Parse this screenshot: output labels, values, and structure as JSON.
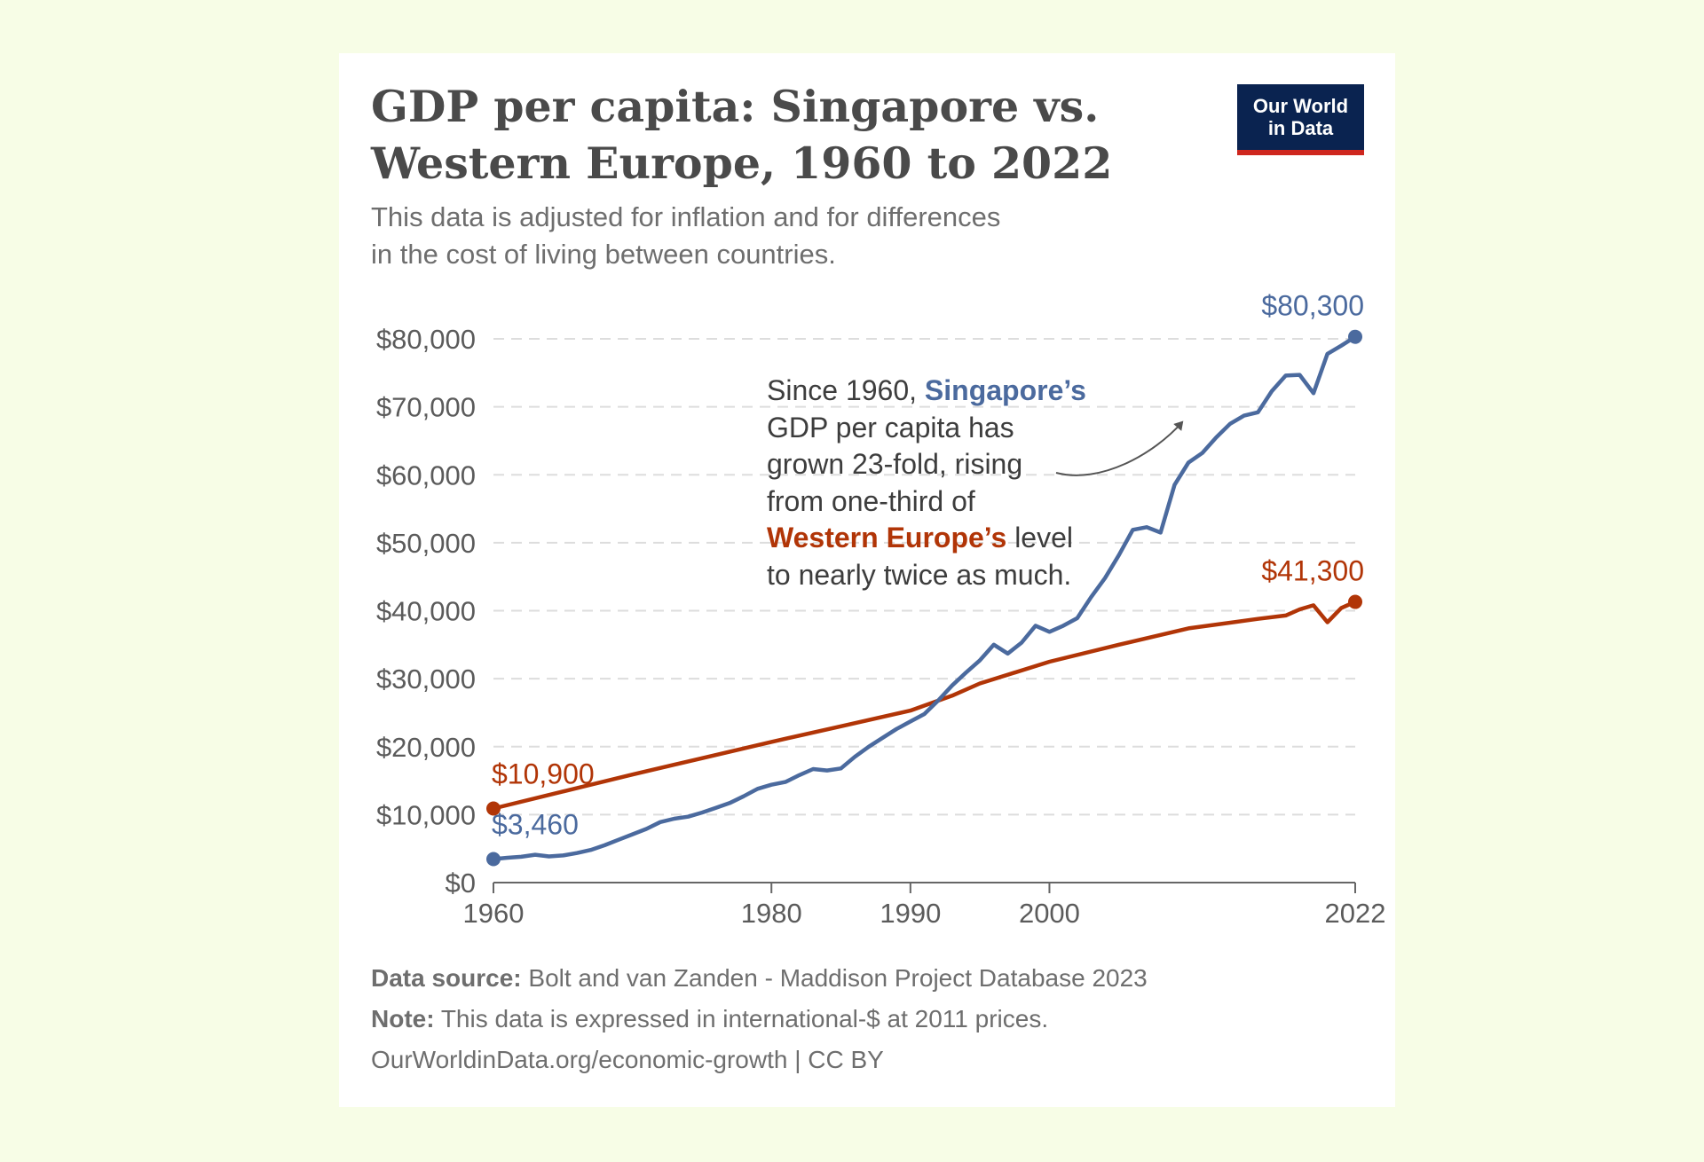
{
  "header": {
    "title_line1": "GDP per capita: Singapore vs.",
    "title_line2": "Western Europe, 1960 to 2022",
    "subtitle_line1": "This data is adjusted for inflation and for differences",
    "subtitle_line2": "in the cost of living between countries.",
    "logo_line1": "Our World",
    "logo_line2": "in Data"
  },
  "annotation": {
    "line1_pre": "Since 1960, ",
    "line1_hl": "Singapore’s",
    "line2": "GDP per capita has",
    "line3": "grown 23-fold, rising",
    "line4": "from one-third of",
    "line5_hl": "Western Europe’s",
    "line5_post": " level",
    "line6": "to nearly twice as much."
  },
  "footer": {
    "source_label": "Data source:",
    "source_text": " Bolt and van Zanden - Maddison Project Database 2023",
    "note_label": "Note:",
    "note_text": " This data is expressed in international-$ at 2011 prices.",
    "url": "OurWorldinData.org/economic-growth | CC BY"
  },
  "colors": {
    "singapore": "#4b6a9e",
    "western_europe": "#b13507",
    "grid": "#dddddd",
    "axis": "#666666",
    "tick_text": "#5b5b5b",
    "background": "#f7fde6"
  },
  "chart_data": {
    "type": "line",
    "ylim": [
      0,
      80000
    ],
    "xlim": [
      1960,
      2022
    ],
    "y_ticks": [
      0,
      10000,
      20000,
      30000,
      40000,
      50000,
      60000,
      70000,
      80000
    ],
    "y_tick_labels": [
      "$0",
      "$10,000",
      "$20,000",
      "$30,000",
      "$40,000",
      "$50,000",
      "$60,000",
      "$70,000",
      "$80,000"
    ],
    "x_ticks": [
      1960,
      1980,
      1990,
      2000,
      2022
    ],
    "x_tick_labels": [
      "1960",
      "1980",
      "1990",
      "2000",
      "2022"
    ],
    "grid": "horizontal dashed",
    "series": [
      {
        "name": "Singapore",
        "color": "#4b6a9e",
        "start_label": "$3,460",
        "end_label": "$80,300",
        "points": [
          [
            1960,
            3460
          ],
          [
            1961,
            3650
          ],
          [
            1962,
            3800
          ],
          [
            1963,
            4100
          ],
          [
            1964,
            3850
          ],
          [
            1965,
            4000
          ],
          [
            1966,
            4350
          ],
          [
            1967,
            4800
          ],
          [
            1968,
            5500
          ],
          [
            1969,
            6300
          ],
          [
            1970,
            7100
          ],
          [
            1971,
            7900
          ],
          [
            1972,
            8900
          ],
          [
            1973,
            9400
          ],
          [
            1974,
            9700
          ],
          [
            1975,
            10300
          ],
          [
            1976,
            11000
          ],
          [
            1977,
            11700
          ],
          [
            1978,
            12700
          ],
          [
            1979,
            13800
          ],
          [
            1980,
            14400
          ],
          [
            1981,
            14800
          ],
          [
            1982,
            15800
          ],
          [
            1983,
            16700
          ],
          [
            1984,
            16500
          ],
          [
            1985,
            16800
          ],
          [
            1986,
            18500
          ],
          [
            1987,
            20000
          ],
          [
            1988,
            21300
          ],
          [
            1989,
            22600
          ],
          [
            1990,
            23700
          ],
          [
            1991,
            24800
          ],
          [
            1992,
            26800
          ],
          [
            1993,
            29000
          ],
          [
            1994,
            30900
          ],
          [
            1995,
            32700
          ],
          [
            1996,
            35000
          ],
          [
            1997,
            33700
          ],
          [
            1998,
            35300
          ],
          [
            1999,
            37800
          ],
          [
            2000,
            36900
          ],
          [
            2001,
            37800
          ],
          [
            2002,
            38900
          ],
          [
            2003,
            42000
          ],
          [
            2004,
            44800
          ],
          [
            2005,
            48200
          ],
          [
            2006,
            51900
          ],
          [
            2007,
            52300
          ],
          [
            2008,
            51500
          ],
          [
            2009,
            58500
          ],
          [
            2010,
            61800
          ],
          [
            2011,
            63200
          ],
          [
            2012,
            65500
          ],
          [
            2013,
            67500
          ],
          [
            2014,
            68700
          ],
          [
            2015,
            69200
          ],
          [
            2016,
            72300
          ],
          [
            2017,
            74600
          ],
          [
            2018,
            74700
          ],
          [
            2019,
            72000
          ],
          [
            2020,
            77800
          ],
          [
            2021,
            79000
          ],
          [
            2022,
            80300
          ]
        ]
      },
      {
        "name": "Western Europe",
        "color": "#b13507",
        "start_label": "$10,900",
        "end_label": "$41,300",
        "points": [
          [
            1960,
            10900
          ],
          [
            1965,
            13400
          ],
          [
            1970,
            15900
          ],
          [
            1975,
            18300
          ],
          [
            1980,
            20700
          ],
          [
            1985,
            23000
          ],
          [
            1990,
            25300
          ],
          [
            1993,
            27500
          ],
          [
            1995,
            29300
          ],
          [
            2000,
            32500
          ],
          [
            2005,
            35000
          ],
          [
            2010,
            37400
          ],
          [
            2015,
            38800
          ],
          [
            2017,
            39300
          ],
          [
            2018,
            40200
          ],
          [
            2019,
            40800
          ],
          [
            2020,
            38300
          ],
          [
            2021,
            40400
          ],
          [
            2022,
            41300
          ]
        ]
      }
    ]
  }
}
